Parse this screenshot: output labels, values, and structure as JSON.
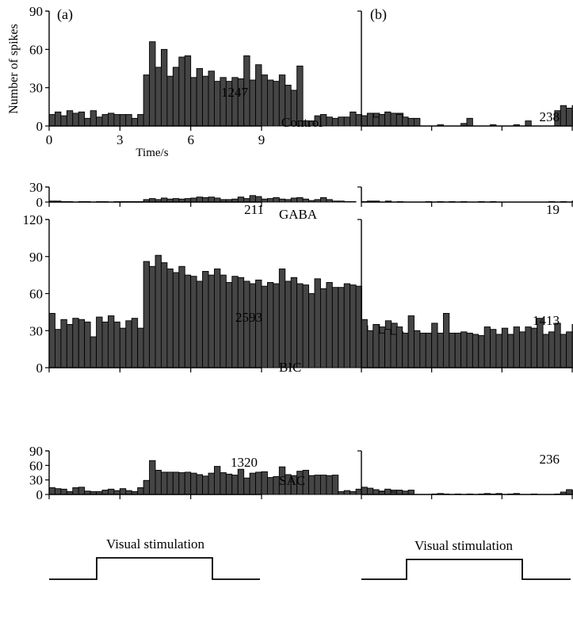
{
  "panel_labels": {
    "a": "(a)",
    "b": "(b)"
  },
  "stimulus_label": "Visual stimulation",
  "y_axis_label": "Number of spikes",
  "x_axis_label": "Time/s",
  "x_ticks": [
    "0",
    "3",
    "6",
    "9"
  ],
  "colors": {
    "bar_fill": "#454545",
    "bar_stroke": "#000000"
  },
  "chart_data": [
    {
      "type": "bar",
      "panel": "a",
      "condition": "Control",
      "total_label": "1247",
      "xlim": [
        0,
        9
      ],
      "ylim": [
        0,
        90
      ],
      "yticks": [
        0,
        30,
        60,
        90
      ],
      "bin_width": 0.25,
      "values": [
        9,
        11,
        8,
        12,
        10,
        11,
        6,
        12,
        7,
        9,
        10,
        9,
        9,
        9,
        6,
        9,
        40,
        66,
        46,
        60,
        39,
        46,
        54,
        55,
        38,
        45,
        39,
        43,
        35,
        38,
        35,
        38,
        37,
        55,
        36,
        48,
        40,
        36,
        35,
        40,
        32,
        28,
        47,
        4,
        4,
        8,
        9,
        7,
        6,
        7,
        7,
        11,
        9,
        8,
        5,
        10,
        9,
        7,
        9,
        10
      ]
    },
    {
      "type": "bar",
      "panel": "b",
      "condition": "Control",
      "total_label": "238",
      "xlim": [
        0,
        9
      ],
      "ylim": [
        0,
        90
      ],
      "yticks": [],
      "bin_width": 0.25,
      "values": [
        8,
        10,
        7,
        9,
        11,
        10,
        9,
        7,
        6,
        6,
        0,
        0,
        0,
        1,
        0,
        0,
        0,
        2,
        6,
        0,
        0,
        0,
        1,
        0,
        0,
        0,
        1,
        0,
        4,
        0,
        0,
        0,
        0,
        12,
        16,
        14,
        16,
        13,
        10,
        7
      ]
    },
    {
      "type": "bar",
      "panel": "a",
      "condition": "GABA",
      "total_label": "211",
      "xlim": [
        0,
        9
      ],
      "ylim": [
        0,
        30
      ],
      "yticks": [
        0,
        30
      ],
      "bin_width": 0.25,
      "values": [
        2,
        2,
        1,
        1,
        0,
        1,
        1,
        0,
        1,
        1,
        0,
        1,
        1,
        1,
        1,
        1,
        5,
        7,
        5,
        8,
        6,
        7,
        6,
        7,
        8,
        10,
        9,
        10,
        8,
        5,
        5,
        6,
        10,
        7,
        13,
        11,
        6,
        7,
        9,
        6,
        5,
        8,
        9,
        6,
        3,
        5,
        9,
        5,
        2,
        2,
        1,
        1,
        0,
        1,
        1,
        2,
        0,
        2,
        0,
        1
      ]
    },
    {
      "type": "bar",
      "panel": "b",
      "condition": "GABA",
      "total_label": "19",
      "xlim": [
        0,
        9
      ],
      "ylim": [
        0,
        30
      ],
      "yticks": [],
      "bin_width": 0.25,
      "values": [
        0,
        2,
        0,
        0,
        0,
        0,
        0,
        0,
        0,
        0,
        0,
        1,
        0,
        1,
        0,
        1,
        0,
        1,
        0,
        0,
        1,
        0,
        1,
        0,
        0,
        0,
        0,
        0,
        0,
        0,
        0,
        0,
        1,
        0,
        1,
        0,
        2,
        0,
        1,
        0
      ]
    },
    {
      "type": "bar",
      "panel": "a",
      "condition": "BIC",
      "total_label": "2593",
      "xlim": [
        0,
        9
      ],
      "ylim": [
        0,
        120
      ],
      "yticks": [
        0,
        30,
        60,
        90,
        120
      ],
      "bin_width": 0.25,
      "values": [
        44,
        31,
        39,
        35,
        40,
        39,
        37,
        25,
        41,
        37,
        42,
        37,
        32,
        38,
        40,
        32,
        86,
        82,
        91,
        85,
        80,
        77,
        82,
        75,
        74,
        70,
        78,
        75,
        80,
        75,
        69,
        74,
        73,
        70,
        68,
        71,
        66,
        69,
        68,
        80,
        70,
        73,
        68,
        67,
        60,
        72,
        64,
        69,
        65,
        65,
        68,
        67,
        66,
        34,
        28,
        35,
        33,
        38,
        36,
        29
      ]
    },
    {
      "type": "bar",
      "panel": "b",
      "condition": "BIC",
      "total_label": "1413",
      "xlim": [
        0,
        9
      ],
      "ylim": [
        0,
        120
      ],
      "yticks": [],
      "bin_width": 0.25,
      "values": [
        39,
        30,
        35,
        28,
        31,
        27,
        33,
        28,
        42,
        30,
        28,
        28,
        36,
        28,
        44,
        28,
        28,
        29,
        28,
        27,
        26,
        33,
        31,
        27,
        32,
        27,
        33,
        29,
        33,
        32,
        40,
        27,
        29,
        36,
        27,
        29,
        35,
        33,
        27,
        27,
        24,
        43,
        28,
        35,
        30,
        29,
        27,
        33,
        24,
        30,
        34,
        28,
        32,
        24,
        25,
        27,
        35,
        45,
        29,
        37
      ]
    },
    {
      "type": "bar",
      "panel": "a",
      "condition": "SAC",
      "total_label": "1320",
      "xlim": [
        0,
        9
      ],
      "ylim": [
        0,
        90
      ],
      "yticks": [
        0,
        30,
        60,
        90
      ],
      "bin_width": 0.25,
      "values": [
        14,
        12,
        11,
        6,
        14,
        15,
        7,
        6,
        6,
        9,
        11,
        8,
        12,
        8,
        6,
        14,
        29,
        70,
        50,
        46,
        46,
        46,
        45,
        46,
        44,
        41,
        38,
        44,
        58,
        45,
        42,
        40,
        52,
        34,
        44,
        46,
        47,
        35,
        37,
        57,
        41,
        39,
        48,
        50,
        39,
        40,
        40,
        39,
        40,
        6,
        8,
        6,
        11,
        12,
        8,
        5,
        7,
        5,
        9,
        7
      ]
    },
    {
      "type": "bar",
      "panel": "b",
      "condition": "SAC",
      "total_label": "236",
      "xlim": [
        0,
        9
      ],
      "ylim": [
        0,
        90
      ],
      "yticks": [],
      "bin_width": 0.25,
      "values": [
        15,
        13,
        10,
        6,
        11,
        5,
        9,
        7,
        9,
        0,
        0,
        0,
        1,
        2,
        1,
        0,
        1,
        0,
        1,
        0,
        1,
        2,
        1,
        2,
        0,
        1,
        2,
        0,
        0,
        1,
        0,
        0,
        0,
        1,
        5,
        10,
        8,
        14,
        12,
        12,
        11,
        14,
        9
      ]
    }
  ]
}
